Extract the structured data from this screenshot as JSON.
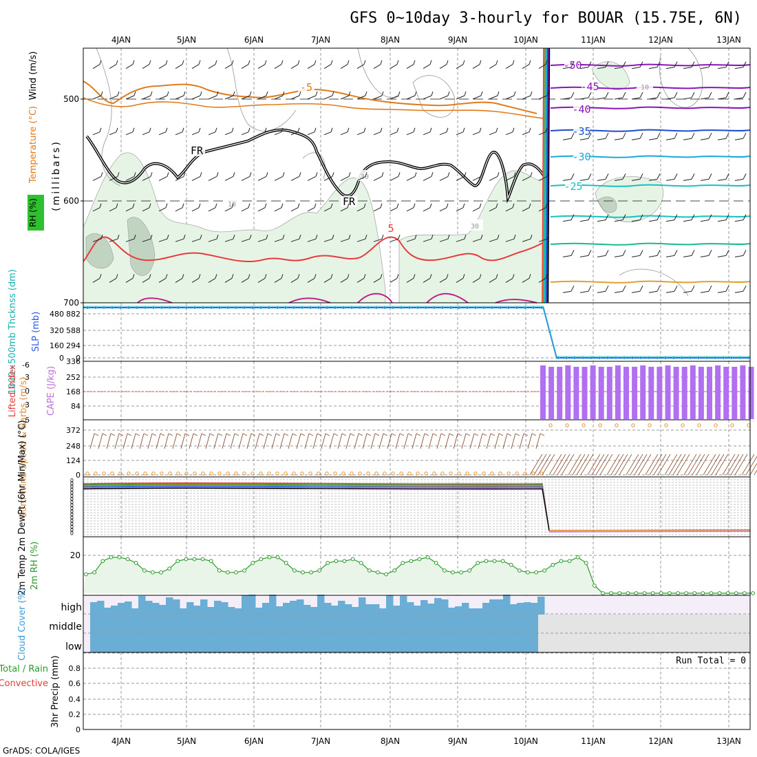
{
  "title": "GFS 0~10day 3-hourly for BOUAR (15.75E, 6N)",
  "footer": "GrADS: COLA/IGES",
  "chart_data": [
    {
      "panel": "upper_air",
      "type": "line",
      "x_ticks": [
        "4JAN",
        "5JAN",
        "6JAN",
        "7JAN",
        "8JAN",
        "9JAN",
        "10JAN",
        "11JAN",
        "12JAN",
        "13JAN"
      ],
      "ylabel": "(millibars)",
      "y_ticks": [
        "500",
        "600",
        "700"
      ],
      "ylim": [
        700,
        450
      ],
      "legend_labels": [
        "RH (%)",
        "Temperature (°C)",
        "Wind (m/s)"
      ],
      "contour_labels": [
        "-5",
        "5",
        "FR",
        "FR",
        "-50",
        "-45",
        "-40",
        "-35",
        "-30",
        "-25",
        "30",
        "10",
        "10",
        "30"
      ]
    },
    {
      "panel": "thickness_slp",
      "type": "line",
      "ylabels": [
        "1000~500mb Thcknss (dm)",
        "SLP (mb)"
      ],
      "left_ticks": [
        "480",
        "320",
        "160",
        "0"
      ],
      "right_ticks": [
        "882",
        "588",
        "294",
        "0"
      ],
      "series": [
        {
          "values": [
            882,
            882,
            882,
            0,
            0,
            0
          ]
        }
      ],
      "x_frac": [
        0,
        0.5,
        0.69,
        0.71,
        0.9,
        1.0
      ]
    },
    {
      "panel": "cape_li",
      "type": "bar",
      "ylabels": [
        "Lifted Index",
        "CAPE (J/kg)"
      ],
      "left_ticks": [
        "-6",
        "-3",
        "0",
        "3",
        "6"
      ],
      "right_ticks": [
        "336",
        "252",
        "168",
        "84"
      ],
      "cape_bar_value": 336,
      "cape_bar_count": 26
    },
    {
      "panel": "wind10m",
      "type": "line",
      "ylabel": "10m Wind Speed & Barbs (m/s)",
      "y_ticks": [
        "372",
        "248",
        "124",
        "0"
      ]
    },
    {
      "panel": "temp2m",
      "type": "line",
      "ylabel": "2m Temp 2m DewPt (6hr Min/Max) (°C)"
    },
    {
      "panel": "rh2m",
      "type": "area",
      "ylabel": "2m RH (%)",
      "y_ticks": [
        "20"
      ],
      "values": [
        10,
        11,
        17,
        19,
        19,
        18,
        16,
        12,
        11,
        11,
        13,
        17,
        18,
        18,
        18,
        17,
        12,
        11,
        11,
        12,
        16,
        18,
        19,
        19,
        16,
        12,
        11,
        11,
        12,
        16,
        17,
        17,
        18,
        16,
        12,
        11,
        10,
        12,
        16,
        17,
        18,
        19,
        16,
        12,
        11,
        11,
        12,
        16,
        17,
        17,
        17,
        15,
        12,
        11,
        11,
        12,
        15,
        17,
        17,
        19,
        16,
        4,
        0,
        0,
        0,
        0,
        0,
        0,
        0,
        0,
        0,
        0,
        0,
        0,
        0,
        0,
        0,
        0,
        0,
        0,
        0
      ]
    },
    {
      "panel": "cloud",
      "type": "area",
      "ylabel": "Cloud Cover (%)",
      "y_ticks": [
        "high",
        "middle",
        "low"
      ]
    },
    {
      "panel": "precip",
      "type": "bar",
      "ylabel": "3hr Precip (mm)",
      "legend_labels": [
        "Total / Rain",
        "Convective"
      ],
      "y_ticks": [
        "0.8",
        "0.6",
        "0.4",
        "0.2",
        "0"
      ],
      "annotation": "Run Total = 0"
    }
  ],
  "colors": {
    "frame": "#000000",
    "grid": "#9a9a9a",
    "rh_fill": "#e6f4e6",
    "rh_dark": "#b9ccb9",
    "temp_orange": "#e07a1a",
    "temp_red": "#e83a3a",
    "freezing": "#000000",
    "cold1": "#8a14b8",
    "cold2": "#1a4ec8",
    "cold3": "#1aa8d8",
    "cold4": "#18c0c0",
    "cold5": "#1ab890",
    "slp": "#1a6ad8",
    "cape": "#b070f0",
    "wind_speed": "#e89030",
    "barb": "#8a5030",
    "cloud_blue": "#6aaed6",
    "cloud_light": "#f4eef8",
    "rh2m": "#2a9a2a",
    "rh2m_fill": "#e8f5e8",
    "precip_label": "#e83a3a",
    "cape_label": "#c070e0",
    "wind_label": "#e09040",
    "cloud_label": "#3a9ad8",
    "thick_label": "#18b0b0",
    "slp_label": "#2a5ae8",
    "li_label": "#e83a3a",
    "rh2m_label": "#2a9a2a"
  }
}
